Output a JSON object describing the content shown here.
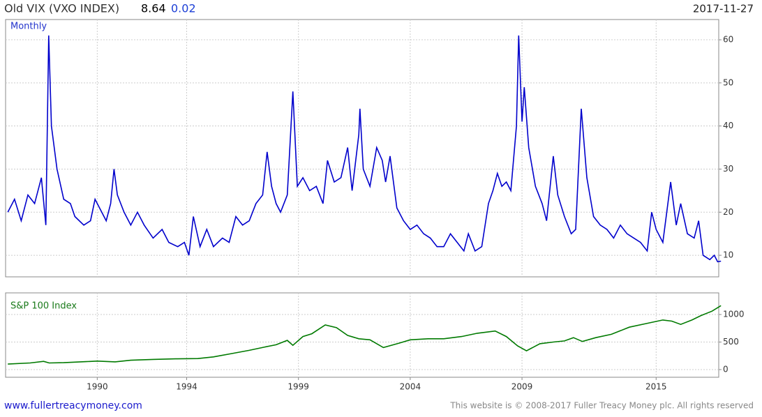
{
  "chart_data": [
    {
      "type": "line",
      "title": "Old VIX (VXO INDEX)",
      "last_value": "8.64",
      "change": "0.02",
      "date": "2017-11-27",
      "label": "Monthly",
      "xlim": [
        1985.9,
        2017.8
      ],
      "xticks": [
        1990,
        1994,
        1999,
        2004,
        2009,
        2015
      ],
      "ylim": [
        5,
        64.7
      ],
      "yticks": [
        10,
        20,
        30,
        40,
        50,
        60
      ],
      "grid": true,
      "series": [
        {
          "name": "Old VIX (VXO INDEX)",
          "color": "#0000cc",
          "x": [
            1986.0,
            1986.3,
            1986.6,
            1986.9,
            1987.2,
            1987.5,
            1987.7,
            1987.83,
            1987.95,
            1988.2,
            1988.5,
            1988.8,
            1989.0,
            1989.4,
            1989.7,
            1989.9,
            1990.2,
            1990.4,
            1990.6,
            1990.75,
            1990.9,
            1991.2,
            1991.5,
            1991.8,
            1992.1,
            1992.5,
            1992.9,
            1993.2,
            1993.6,
            1993.9,
            1994.1,
            1994.3,
            1994.6,
            1994.9,
            1995.2,
            1995.6,
            1995.9,
            1996.2,
            1996.5,
            1996.8,
            1997.1,
            1997.4,
            1997.6,
            1997.8,
            1998.0,
            1998.2,
            1998.5,
            1998.75,
            1998.95,
            1999.2,
            1999.5,
            1999.8,
            2000.1,
            2000.3,
            2000.6,
            2000.9,
            2001.2,
            2001.4,
            2001.7,
            2001.75,
            2001.9,
            2002.2,
            2002.5,
            2002.75,
            2002.9,
            2003.1,
            2003.4,
            2003.7,
            2004.0,
            2004.3,
            2004.6,
            2004.9,
            2005.2,
            2005.5,
            2005.8,
            2006.1,
            2006.4,
            2006.6,
            2006.9,
            2007.2,
            2007.5,
            2007.7,
            2007.9,
            2008.1,
            2008.3,
            2008.5,
            2008.75,
            2008.85,
            2009.0,
            2009.1,
            2009.3,
            2009.6,
            2009.9,
            2010.1,
            2010.4,
            2010.6,
            2010.9,
            2011.2,
            2011.4,
            2011.65,
            2011.9,
            2012.2,
            2012.5,
            2012.8,
            2013.1,
            2013.4,
            2013.7,
            2014.0,
            2014.3,
            2014.6,
            2014.8,
            2015.0,
            2015.3,
            2015.65,
            2015.9,
            2016.1,
            2016.4,
            2016.7,
            2016.9,
            2017.1,
            2017.4,
            2017.6,
            2017.75,
            2017.9
          ],
          "values": [
            20,
            23,
            18,
            24,
            22,
            28,
            17,
            61,
            40,
            30,
            23,
            22,
            19,
            17,
            18,
            23,
            20,
            18,
            22,
            30,
            24,
            20,
            17,
            20,
            17,
            14,
            16,
            13,
            12,
            13,
            10,
            19,
            12,
            16,
            12,
            14,
            13,
            19,
            17,
            18,
            22,
            24,
            34,
            26,
            22,
            20,
            24,
            48,
            26,
            28,
            25,
            26,
            22,
            32,
            27,
            28,
            35,
            25,
            38,
            44,
            30,
            26,
            35,
            32,
            27,
            33,
            21,
            18,
            16,
            17,
            15,
            14,
            12,
            12,
            15,
            13,
            11,
            15,
            11,
            12,
            22,
            25,
            29,
            26,
            27,
            25,
            40,
            61,
            41,
            49,
            35,
            26,
            22,
            18,
            33,
            24,
            19,
            15,
            16,
            44,
            28,
            19,
            17,
            16,
            14,
            17,
            15,
            14,
            13,
            11,
            20,
            16,
            13,
            27,
            17,
            22,
            15,
            14,
            18,
            10,
            9,
            10,
            8.5,
            8.64
          ]
        }
      ]
    },
    {
      "type": "line",
      "label": "S&P 100 Index",
      "xlim": [
        1985.9,
        2017.8
      ],
      "xticks": [
        1990,
        1994,
        1999,
        2004,
        2009,
        2015
      ],
      "ylim": [
        -139,
        1392
      ],
      "yticks": [
        0,
        500,
        1000
      ],
      "grid": true,
      "series": [
        {
          "name": "S&P 100 Index",
          "color": "#007a00",
          "x": [
            1986.0,
            1987.0,
            1987.6,
            1987.85,
            1988.5,
            1989.5,
            1990.0,
            1990.8,
            1991.5,
            1992.5,
            1993.5,
            1994.5,
            1995.2,
            1996.0,
            1996.8,
            1997.5,
            1998.0,
            1998.5,
            1998.75,
            1999.2,
            1999.6,
            2000.2,
            2000.7,
            2001.2,
            2001.7,
            2002.2,
            2002.8,
            2003.5,
            2004.0,
            2004.8,
            2005.5,
            2006.3,
            2007.0,
            2007.8,
            2008.3,
            2008.8,
            2009.2,
            2009.8,
            2010.4,
            2010.9,
            2011.3,
            2011.7,
            2012.3,
            2013.0,
            2013.8,
            2014.5,
            2015.3,
            2015.7,
            2016.1,
            2016.6,
            2017.0,
            2017.5,
            2017.9
          ],
          "values": [
            100,
            120,
            150,
            120,
            125,
            145,
            155,
            140,
            170,
            185,
            195,
            200,
            230,
            290,
            350,
            410,
            450,
            530,
            440,
            600,
            650,
            810,
            760,
            620,
            560,
            540,
            400,
            480,
            540,
            560,
            560,
            600,
            660,
            700,
            600,
            430,
            340,
            470,
            500,
            520,
            580,
            510,
            580,
            640,
            770,
            830,
            900,
            880,
            820,
            900,
            980,
            1060,
            1160
          ]
        }
      ]
    }
  ],
  "footer": {
    "site": "www.fullertreacymoney.com",
    "copyright": "This website is © 2008-2017 Fuller Treacy Money plc. All rights reserved"
  }
}
